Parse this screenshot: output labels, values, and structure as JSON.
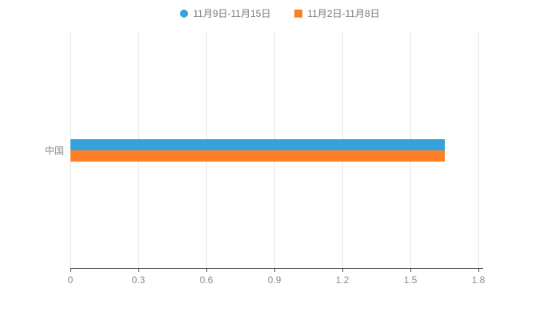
{
  "chart_data": {
    "type": "bar",
    "orientation": "horizontal",
    "title": "",
    "xlabel": "",
    "ylabel": "",
    "categories": [
      "中国"
    ],
    "series": [
      {
        "name": "11月9日-11月15日",
        "color": "#36a2db",
        "marker": "circle",
        "values": [
          1.65
        ]
      },
      {
        "name": "11月2日-11月8日",
        "color": "#ff7f27",
        "marker": "square",
        "values": [
          1.65
        ]
      }
    ],
    "xlim": [
      0,
      1.8
    ],
    "xticks": [
      0,
      0.3,
      0.6,
      0.9,
      1.2,
      1.5,
      1.8
    ],
    "xtick_labels": [
      "0",
      "0.3",
      "0.6",
      "0.9",
      "1.2",
      "1.5",
      "1.8"
    ],
    "grid": "vertical",
    "legend_position": "top-center",
    "colors": {
      "background": "#ffffff",
      "gridline": "#e4e4e4",
      "axis_line": "#4a4a4a",
      "tick_text": "#8d8d8d",
      "legend_text": "#757575"
    }
  }
}
